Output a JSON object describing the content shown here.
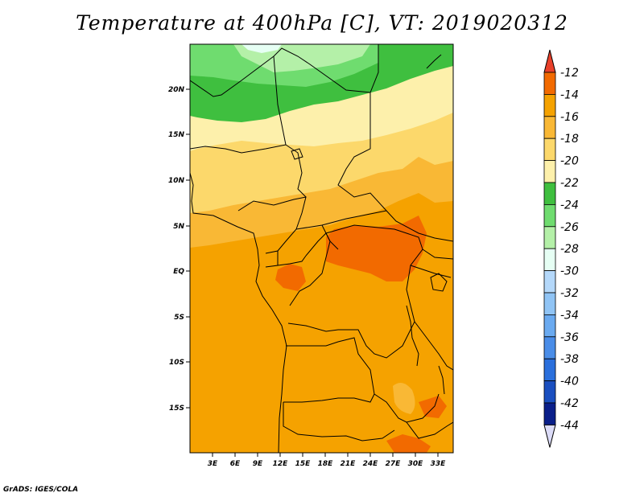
{
  "title": "Temperature at 400hPa [C], VT: 2019020312",
  "credit": "GrADS: IGES/COLA",
  "map": {
    "lat_labels": [
      "20N",
      "15N",
      "10N",
      "5N",
      "EQ",
      "5S",
      "10S",
      "15S"
    ],
    "lon_labels": [
      "3E",
      "6E",
      "9E",
      "12E",
      "15E",
      "18E",
      "21E",
      "24E",
      "27E",
      "30E",
      "33E"
    ],
    "fill_colors": {
      "orange_14": "#f5a200",
      "orange_16": "#f9b835",
      "orange_dark_12": "#f26a00",
      "yellow_18": "#fcd86b",
      "yellow_20": "#fdf0ab",
      "green_24": "#3fbf3f",
      "green_26": "#6fdc6f",
      "green_28": "#b4f0a8",
      "pale_30": "#e6fff4"
    }
  },
  "colorbar": {
    "labels": [
      "-12",
      "-14",
      "-16",
      "-18",
      "-20",
      "-22",
      "-24",
      "-26",
      "-28",
      "-30",
      "-32",
      "-34",
      "-36",
      "-38",
      "-40",
      "-42",
      "-44"
    ],
    "colors": [
      "#e9402a",
      "#f26a00",
      "#f5a200",
      "#f9b835",
      "#fcd86b",
      "#fdf0ab",
      "#3fbf3f",
      "#6fdc6f",
      "#b4f0a8",
      "#e6fff4",
      "#b4d8fa",
      "#90c4f5",
      "#6aaaf0",
      "#4a8de8",
      "#2a6fdc",
      "#1a4fc0",
      "#0a1f8a",
      "#dcdcf8"
    ]
  }
}
